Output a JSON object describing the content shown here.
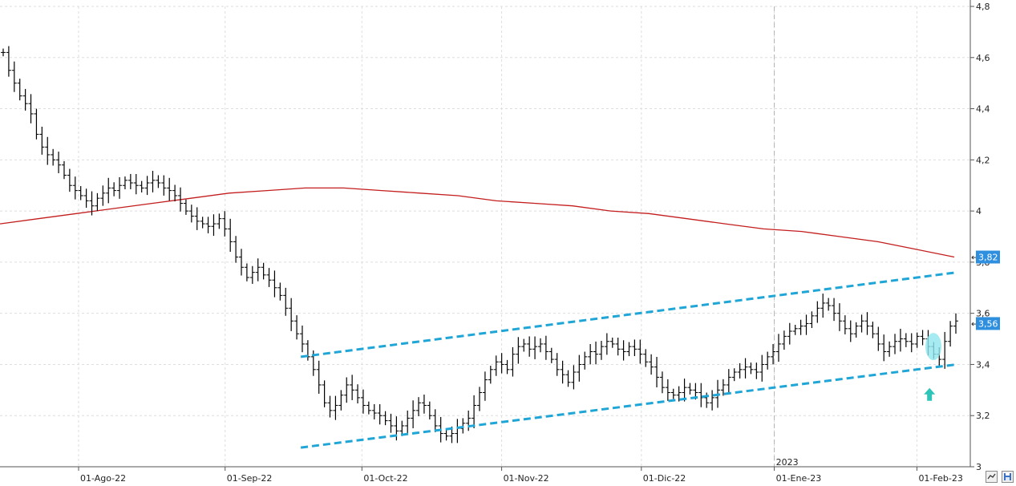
{
  "chart_data": {
    "type": "ohlc",
    "title": "",
    "xlabel": "",
    "ylabel": "",
    "ylim": [
      3.0,
      4.8
    ],
    "y_ticks": [
      "4,8",
      "4,6",
      "4,4",
      "4,2",
      "4",
      "3,8",
      "3,6",
      "3,4",
      "3,2",
      "3"
    ],
    "y_tick_values": [
      4.8,
      4.6,
      4.4,
      4.2,
      4.0,
      3.8,
      3.6,
      3.4,
      3.2,
      3.0
    ],
    "x_ticks": [
      "01-Ago-22",
      "01-Sep-22",
      "01-Oct-22",
      "01-Nov-22",
      "01-Dic-22",
      "01-Ene-23",
      "01-Feb-23"
    ],
    "year_marker": "2023",
    "grid": true,
    "series": [
      {
        "kind": "price-bars",
        "color": "#000000",
        "closes": [
          4.62,
          4.55,
          4.5,
          4.45,
          4.42,
          4.38,
          4.3,
          4.25,
          4.22,
          4.2,
          4.18,
          4.14,
          4.1,
          4.08,
          4.06,
          4.04,
          4.02,
          4.05,
          4.07,
          4.09,
          4.08,
          4.1,
          4.12,
          4.11,
          4.1,
          4.09,
          4.11,
          4.12,
          4.11,
          4.09,
          4.08,
          4.06,
          4.03,
          4.0,
          3.98,
          3.96,
          3.95,
          3.94,
          3.95,
          3.97,
          3.93,
          3.88,
          3.82,
          3.78,
          3.74,
          3.76,
          3.78,
          3.75,
          3.73,
          3.7,
          3.67,
          3.62,
          3.57,
          3.52,
          3.48,
          3.43,
          3.38,
          3.32,
          3.25,
          3.22,
          3.24,
          3.28,
          3.32,
          3.3,
          3.27,
          3.24,
          3.22,
          3.21,
          3.2,
          3.18,
          3.16,
          3.14,
          3.16,
          3.19,
          3.22,
          3.25,
          3.24,
          3.2,
          3.16,
          3.13,
          3.12,
          3.13,
          3.15,
          3.17,
          3.19,
          3.24,
          3.29,
          3.34,
          3.38,
          3.41,
          3.4,
          3.38,
          3.44,
          3.47,
          3.48,
          3.46,
          3.47,
          3.48,
          3.45,
          3.42,
          3.38,
          3.36,
          3.33,
          3.37,
          3.4,
          3.43,
          3.45,
          3.44,
          3.47,
          3.49,
          3.48,
          3.46,
          3.45,
          3.47,
          3.46,
          3.44,
          3.41,
          3.39,
          3.35,
          3.31,
          3.29,
          3.28,
          3.29,
          3.31,
          3.3,
          3.29,
          3.27,
          3.25,
          3.27,
          3.3,
          3.32,
          3.35,
          3.37,
          3.38,
          3.39,
          3.38,
          3.37,
          3.4,
          3.43,
          3.45,
          3.48,
          3.51,
          3.53,
          3.54,
          3.55,
          3.56,
          3.59,
          3.62,
          3.64,
          3.63,
          3.6,
          3.57,
          3.54,
          3.52,
          3.55,
          3.57,
          3.55,
          3.52,
          3.48,
          3.45,
          3.47,
          3.49,
          3.5,
          3.49,
          3.48,
          3.51,
          3.5,
          3.47,
          3.44,
          3.42,
          3.49,
          3.55,
          3.57
        ]
      },
      {
        "kind": "moving-average",
        "color": "#c41d1d",
        "points": [
          3.95,
          3.97,
          3.99,
          4.01,
          4.03,
          4.05,
          4.07,
          4.08,
          4.09,
          4.09,
          4.08,
          4.07,
          4.06,
          4.04,
          4.03,
          4.02,
          4.0,
          3.99,
          3.97,
          3.95,
          3.93,
          3.92,
          3.9,
          3.88,
          3.85,
          3.82
        ]
      }
    ],
    "trendlines": [
      {
        "name": "upper-channel",
        "color": "#1fa6d6",
        "from": [
          0.31,
          3.43
        ],
        "to": [
          0.986,
          3.76
        ]
      },
      {
        "name": "lower-channel",
        "color": "#1fa6d6",
        "from": [
          0.31,
          3.075
        ],
        "to": [
          0.986,
          3.4
        ]
      }
    ],
    "annotations": [
      {
        "type": "highlight-ellipse",
        "color": "#8fe6ee",
        "at": [
          0.962,
          3.47
        ]
      },
      {
        "type": "up-arrow",
        "color": "#2fc4b8",
        "at": [
          0.958,
          3.28
        ]
      }
    ],
    "price_badges": [
      {
        "label": "3,82",
        "value": 3.82,
        "color": "#2f8fdf"
      },
      {
        "label": "3,56",
        "value": 3.56,
        "color": "#2f8fdf"
      }
    ]
  }
}
